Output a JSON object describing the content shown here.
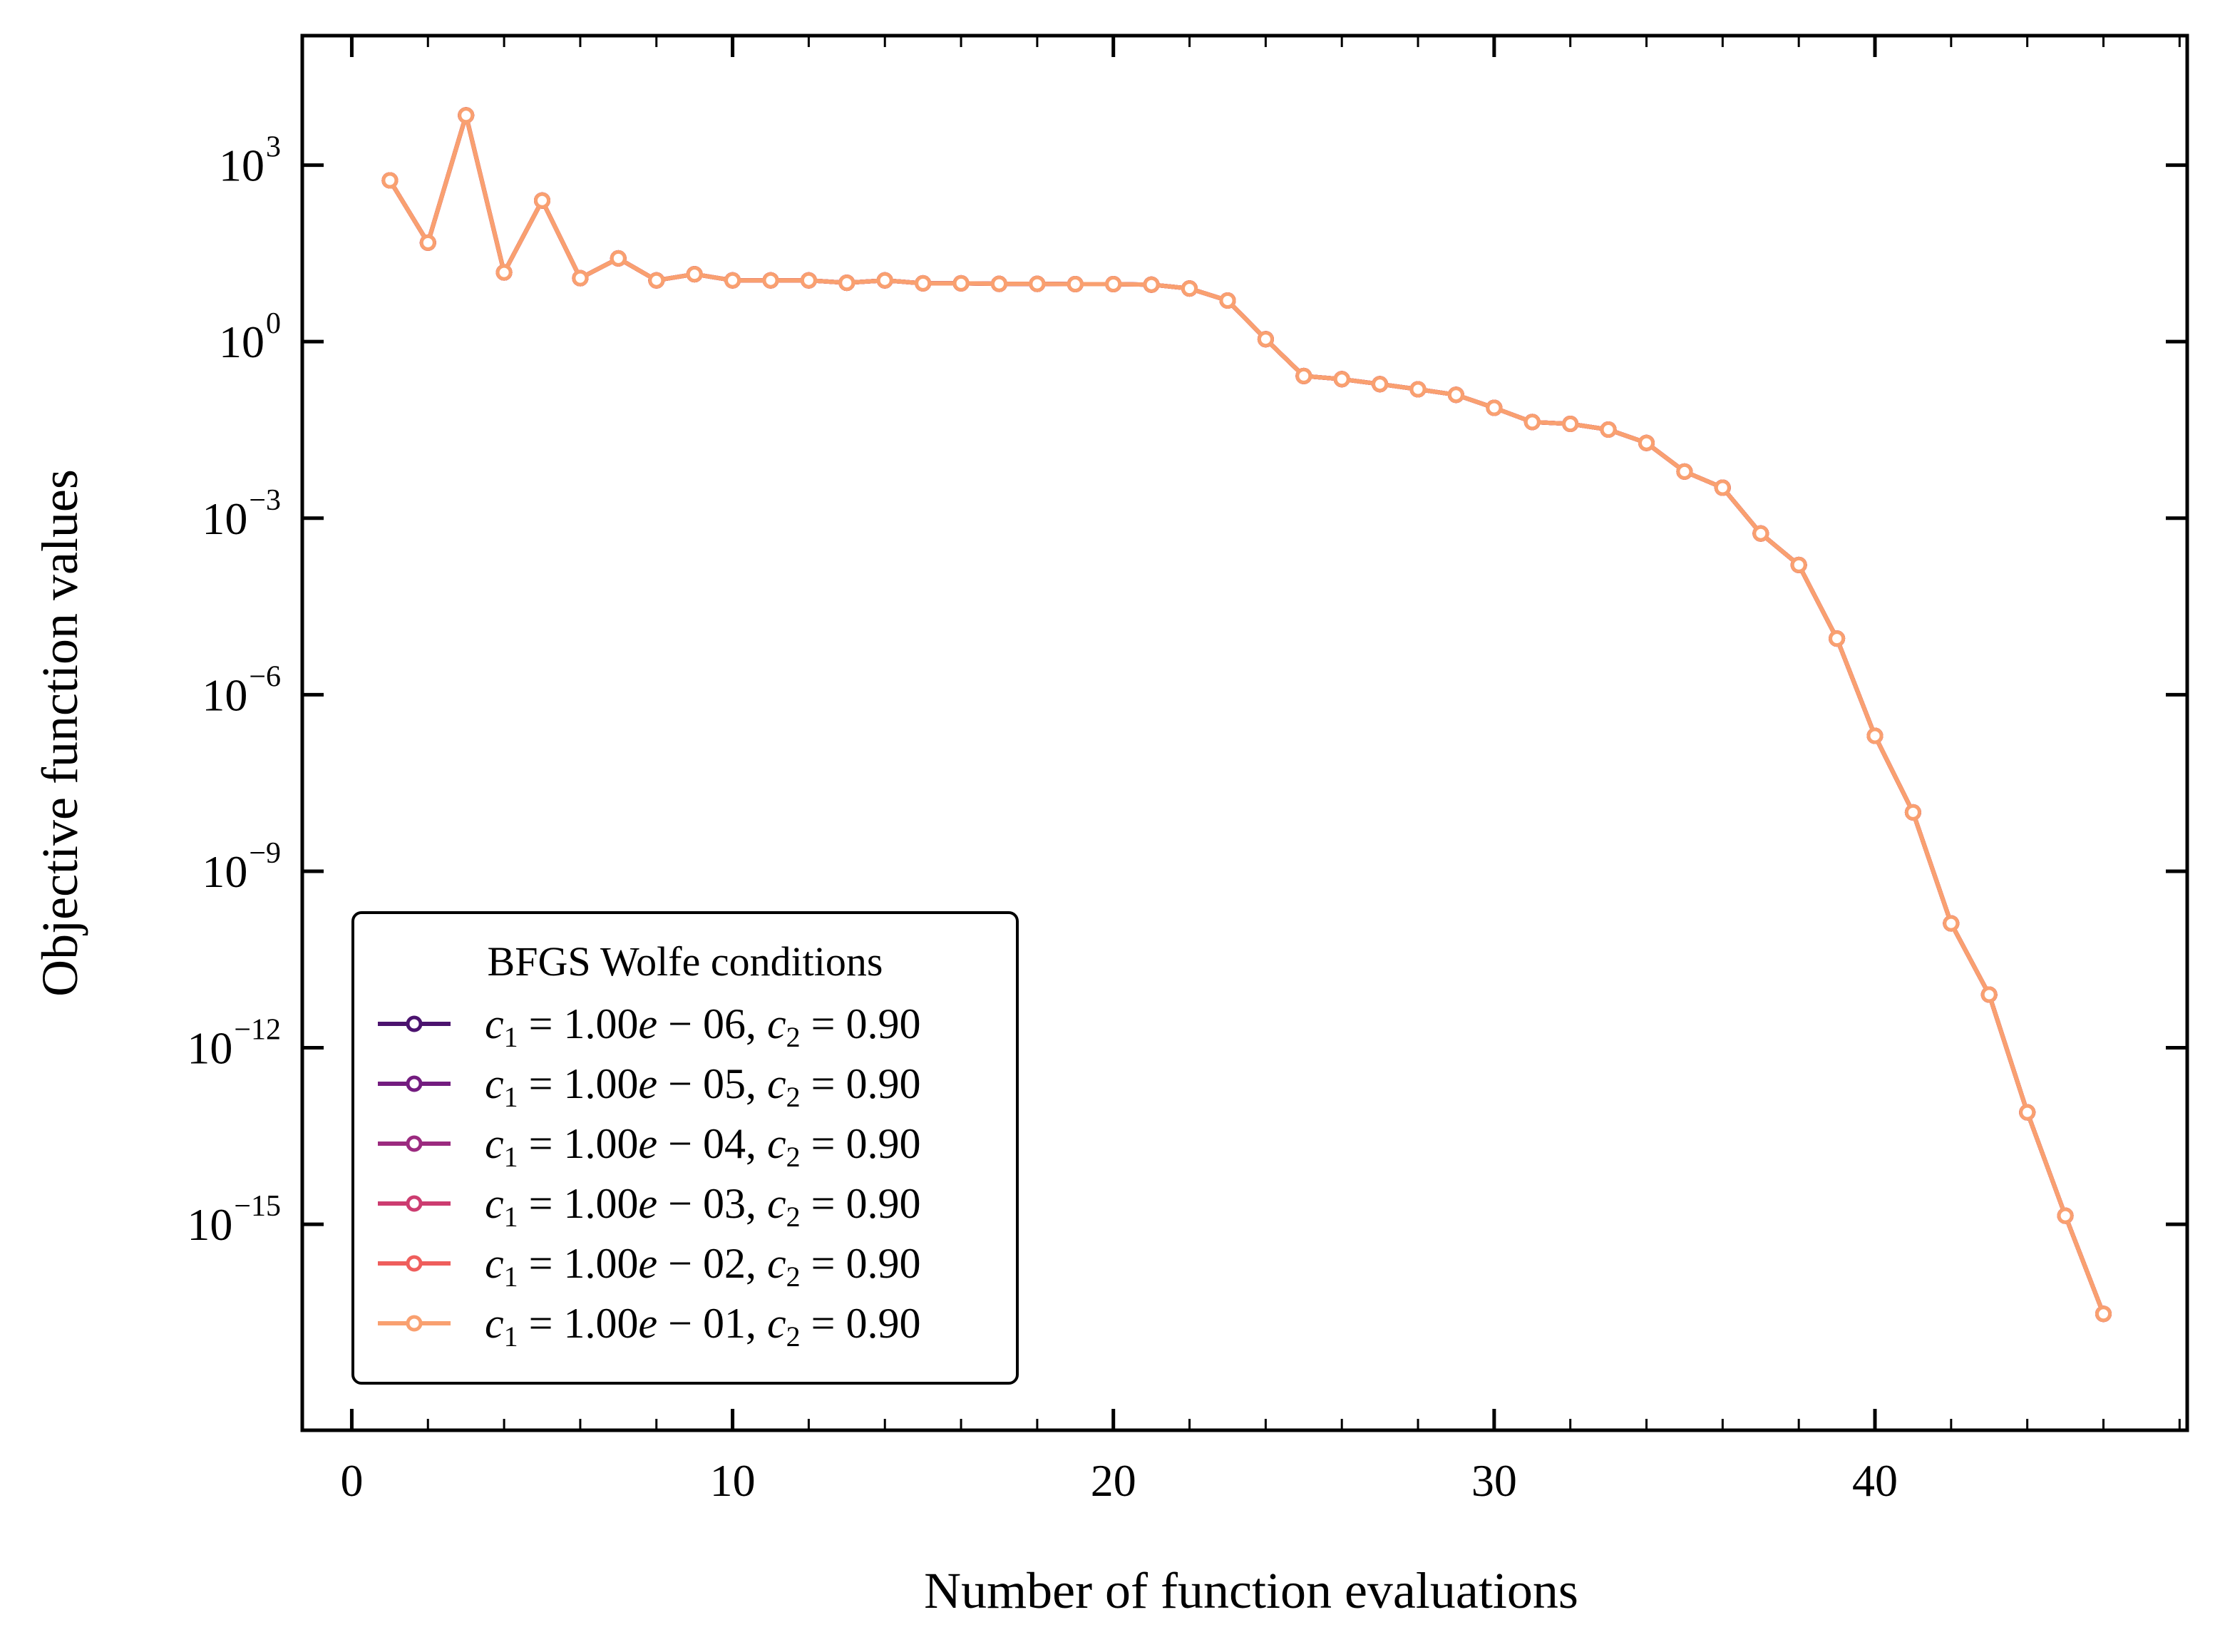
{
  "chart_data": {
    "type": "line",
    "xlabel": "Number of function evaluations",
    "ylabel": "Objective function values",
    "yscale": "log",
    "xlim": [
      -1.3,
      48.2
    ],
    "ylim_exponent": [
      -18.5,
      5.2
    ],
    "xticks": [
      "0",
      "10",
      "20",
      "30",
      "40"
    ],
    "yticks": [
      {
        "base": "10",
        "exp": "3",
        "value": 1000
      },
      {
        "base": "10",
        "exp": "0",
        "value": 1
      },
      {
        "base": "10",
        "exp": "−3",
        "value": 0.001
      },
      {
        "base": "10",
        "exp": "−6",
        "value": 1e-06
      },
      {
        "base": "10",
        "exp": "−9",
        "value": 1e-09
      },
      {
        "base": "10",
        "exp": "−12",
        "value": 1e-12
      },
      {
        "base": "10",
        "exp": "−15",
        "value": 1e-15
      }
    ],
    "legend": {
      "title": "BFGS Wolfe conditions",
      "placement": "lower-left"
    },
    "x": [
      1,
      2,
      3,
      4,
      5,
      6,
      7,
      8,
      9,
      10,
      11,
      12,
      13,
      14,
      15,
      16,
      17,
      18,
      19,
      20,
      21,
      22,
      23,
      24,
      25,
      26,
      27,
      28,
      29,
      30,
      31,
      32,
      33,
      34,
      35,
      36,
      37,
      38,
      39,
      40,
      41,
      42,
      43,
      44,
      45,
      46
    ],
    "y": [
      550,
      48,
      7000,
      15,
      250,
      12,
      26,
      11,
      14,
      11,
      11,
      11,
      10,
      11,
      9.8,
      9.8,
      9.6,
      9.6,
      9.5,
      9.5,
      9.3,
      8.0,
      5.0,
      1.1,
      0.26,
      0.23,
      0.19,
      0.155,
      0.125,
      0.075,
      0.043,
      0.04,
      0.032,
      0.019,
      0.0062,
      0.0033,
      0.00055,
      0.00016,
      9e-06,
      2e-07,
      1e-08,
      1.3e-10,
      8e-12,
      8e-14,
      1.4e-15,
      3e-17
    ],
    "series": [
      {
        "name": "c1 = 1.00e − 06, c2 = 0.90",
        "c1_text": "1.00",
        "c1_exp": "06",
        "c2_text": "0.90",
        "color": "#4b136e"
      },
      {
        "name": "c1 = 1.00e − 05, c2 = 0.90",
        "c1_text": "1.00",
        "c1_exp": "05",
        "c2_text": "0.90",
        "color": "#731c7f"
      },
      {
        "name": "c1 = 1.00e − 04, c2 = 0.90",
        "c1_text": "1.00",
        "c1_exp": "04",
        "c2_text": "0.90",
        "color": "#9b2a7f"
      },
      {
        "name": "c1 = 1.00e − 03, c2 = 0.90",
        "c1_text": "1.00",
        "c1_exp": "03",
        "c2_text": "0.90",
        "color": "#cc3c70"
      },
      {
        "name": "c1 = 1.00e − 02, c2 = 0.90",
        "c1_text": "1.00",
        "c1_exp": "02",
        "c2_text": "0.90",
        "color": "#ef5e5c"
      },
      {
        "name": "c1 = 1.00e − 01, c2 = 0.90",
        "c1_text": "1.00",
        "c1_exp": "01",
        "c2_text": "0.90",
        "color": "#f9a070"
      }
    ]
  }
}
